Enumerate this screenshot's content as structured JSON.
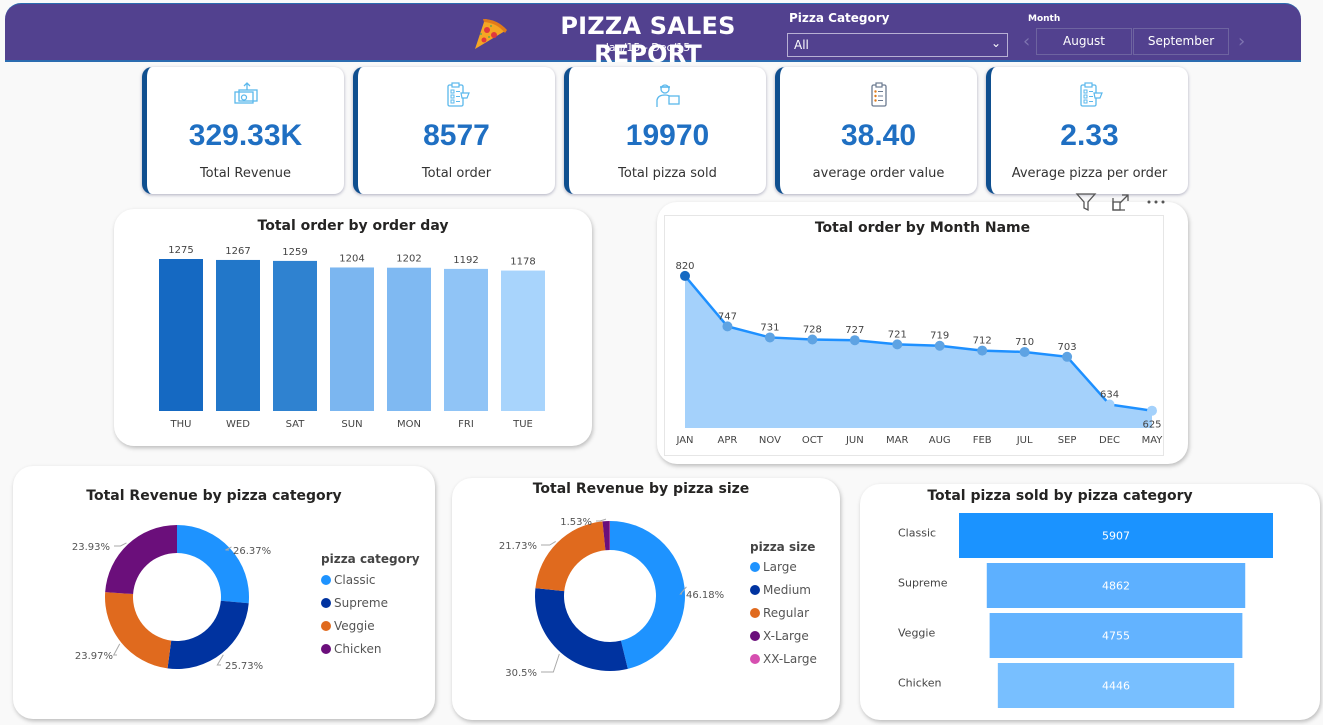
{
  "header": {
    "title": "PIZZA SALES REPORT",
    "subtitle": "Jan/15 - Dec/15",
    "logo_icon": "pizza-slice-icon",
    "filters": {
      "category_label": "Pizza Category",
      "category_value": "All",
      "month_label": "Month",
      "month_options": [
        "August",
        "September"
      ]
    },
    "colors": {
      "background": "#52418f",
      "accent": "#2b6cb0"
    }
  },
  "kpis": [
    {
      "value": "329.33K",
      "label": "Total Revenue",
      "icon": "money-icon"
    },
    {
      "value": "8577",
      "label": "Total order",
      "icon": "order-list-icon"
    },
    {
      "value": "19970",
      "label": "Total pizza sold",
      "icon": "delivery-person-icon"
    },
    {
      "value": "38.40",
      "label": "average order value",
      "icon": "clipboard-icon"
    },
    {
      "value": "2.33",
      "label": "Average pizza per order",
      "icon": "order-list-icon"
    }
  ],
  "visual_tools": {
    "filter": "filter-icon",
    "focus": "focus-mode-icon",
    "more": "more-options-icon"
  },
  "chart_data": [
    {
      "type": "bar",
      "title": "Total order by order day",
      "categories": [
        "THU",
        "WED",
        "SAT",
        "SUN",
        "MON",
        "FRI",
        "TUE"
      ],
      "values": [
        1275,
        1267,
        1259,
        1204,
        1202,
        1192,
        1178
      ],
      "colors": [
        "#1569c2",
        "#2277c9",
        "#2f82d0",
        "#7bb6f0",
        "#7fb9f2",
        "#90c4f6",
        "#a8d4fc"
      ],
      "xlabel": "",
      "ylabel": "",
      "ylim": [
        0,
        1300
      ],
      "grid": false
    },
    {
      "type": "area",
      "title": "Total order by Month Name",
      "categories": [
        "JAN",
        "APR",
        "NOV",
        "OCT",
        "JUN",
        "MAR",
        "AUG",
        "FEB",
        "JUL",
        "SEP",
        "DEC",
        "MAY"
      ],
      "values": [
        820,
        747,
        731,
        728,
        727,
        721,
        719,
        712,
        710,
        703,
        634,
        625
      ],
      "line_color": "#1e90ff",
      "fill_color": "#a4d1fb",
      "xlabel": "",
      "ylabel": "",
      "ylim": [
        600,
        830
      ],
      "grid": false
    },
    {
      "type": "pie",
      "title": "Total Revenue by pizza category",
      "legend_title": "pizza category",
      "legend_position": "right",
      "labels": [
        "Classic",
        "Supreme",
        "Veggie",
        "Chicken"
      ],
      "values": [
        26.37,
        25.73,
        23.97,
        23.93
      ],
      "value_labels": [
        "26.37%",
        "25.73%",
        "23.97%",
        "23.93%"
      ],
      "colors": [
        "#1e93ff",
        "#0033a0",
        "#e06a1e",
        "#6b0f7b"
      ]
    },
    {
      "type": "pie",
      "title": "Total Revenue by pizza size",
      "legend_title": "pizza size",
      "legend_position": "right",
      "labels": [
        "Large",
        "Medium",
        "Regular",
        "X-Large",
        "XX-Large"
      ],
      "values": [
        46.18,
        30.5,
        21.73,
        1.53,
        0.06
      ],
      "value_labels": [
        "46.18%",
        "30.5%",
        "21.73%",
        "1.53%",
        ""
      ],
      "colors": [
        "#1e93ff",
        "#0033a0",
        "#e06a1e",
        "#6b0f7b",
        "#d64fb0"
      ]
    },
    {
      "type": "bar",
      "orientation": "funnel",
      "title": "Total pizza sold by pizza category",
      "categories": [
        "Classic",
        "Supreme",
        "Veggie",
        "Chicken"
      ],
      "values": [
        5907,
        4862,
        4755,
        4446
      ],
      "colors": [
        "#1b93ff",
        "#5db0ff",
        "#63b3ff",
        "#78bfff"
      ]
    }
  ]
}
